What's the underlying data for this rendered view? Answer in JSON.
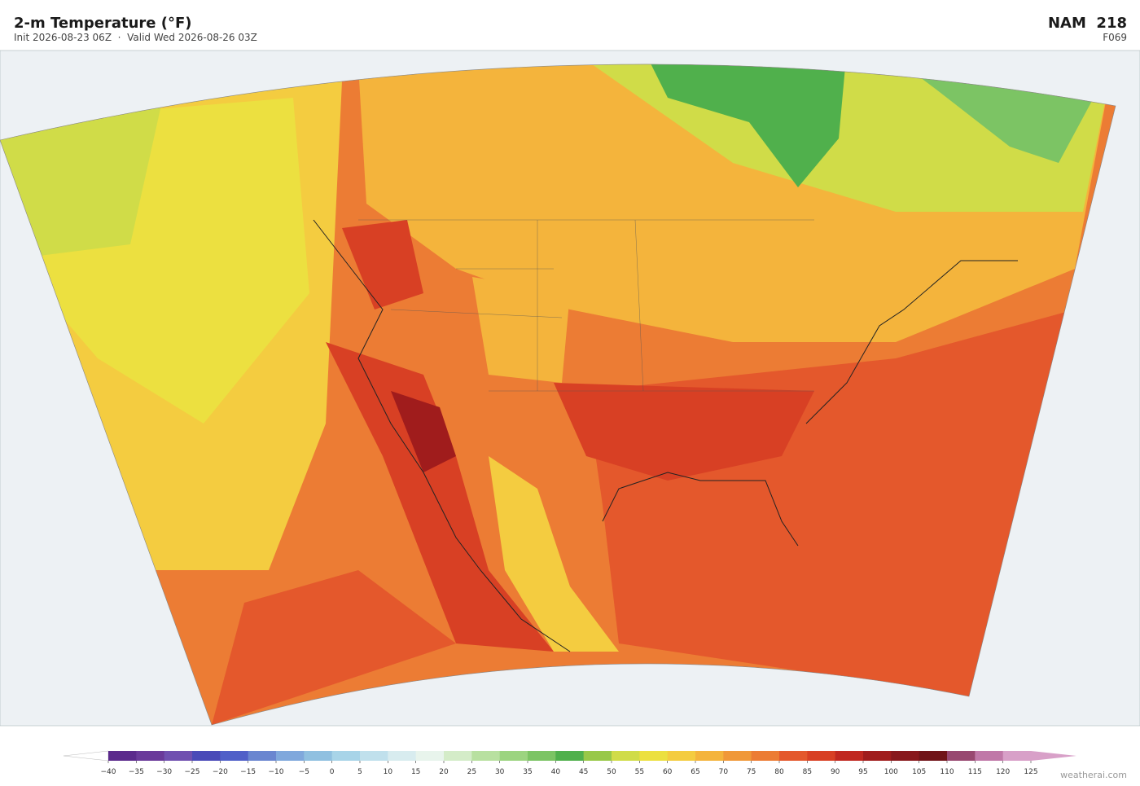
{
  "header": {
    "title": "2-m Temperature  (°F)",
    "subtitle": "Init 2026-08-23 06Z  ·  Valid Wed 2026-08-26 03Z",
    "model": "NAM  218",
    "forecast": "F069"
  },
  "colorbar": {
    "ticks": [
      {
        "value": -40,
        "label": "−40"
      },
      {
        "value": -35,
        "label": "−35"
      },
      {
        "value": -30,
        "label": "−30"
      },
      {
        "value": -25,
        "label": "−25"
      },
      {
        "value": -20,
        "label": "−20"
      },
      {
        "value": -15,
        "label": "−15"
      },
      {
        "value": -10,
        "label": "−10"
      },
      {
        "value": -5,
        "label": "−5"
      },
      0,
      5,
      10,
      15,
      20,
      25,
      30,
      35,
      40,
      45,
      50,
      55,
      60,
      65,
      70,
      75,
      80,
      85,
      90,
      95,
      100,
      105,
      110,
      115,
      120,
      125
    ],
    "colors": [
      "#5b2a8c",
      "#6a3a9a",
      "#7050b0",
      "#4a4ab8",
      "#5060c8",
      "#6a86d0",
      "#80a8dc",
      "#90c0e0",
      "#a8d4e8",
      "#c0e0ec",
      "#d8ecef",
      "#e8f4ec",
      "#d4ecc8",
      "#b8e0a0",
      "#9cd480",
      "#7cc464",
      "#50b04c",
      "#98c848",
      "#d0dc48",
      "#ece040",
      "#f4cc40",
      "#f4b43c",
      "#f09838",
      "#ec7c34",
      "#e4582c",
      "#d84024",
      "#c02820",
      "#a01c1c",
      "#88181c",
      "#701418",
      "#984870",
      "#c078a8",
      "#d8a0c8"
    ],
    "under_color": "#ffffff",
    "over_color": "#d8a0c8"
  },
  "footer": {
    "credit": "weatherai.com"
  }
}
